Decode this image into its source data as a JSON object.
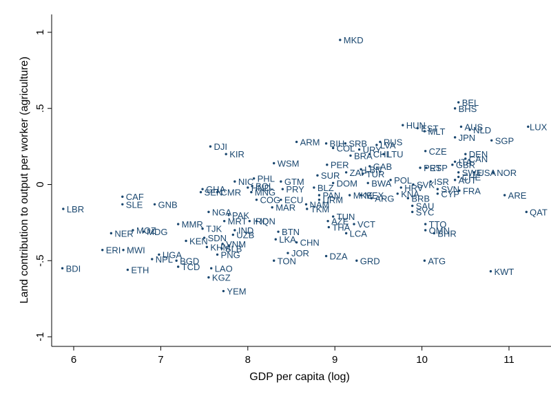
{
  "chart_data": {
    "type": "scatter",
    "xlabel": "GDP per capita (log)",
    "ylabel": "Land contribution to output per worker (agriculture)",
    "xlim": [
      5.8,
      11.4
    ],
    "ylim": [
      -1.1,
      1.1
    ],
    "x_ticks": [
      6,
      7,
      8,
      9,
      10,
      11
    ],
    "y_ticks": [
      1,
      0.5,
      0,
      -0.5,
      -1
    ],
    "y_tick_labels": [
      "1",
      ".5",
      "0",
      "-.5",
      "-1"
    ],
    "grid": false,
    "marker_color": "#1a476f",
    "points": [
      {
        "label": "MKD",
        "x": 9.06,
        "y": 0.95
      },
      {
        "label": "BEL",
        "x": 10.42,
        "y": 0.54
      },
      {
        "label": "BHS",
        "x": 10.38,
        "y": 0.5
      },
      {
        "label": "LUX",
        "x": 11.22,
        "y": 0.38
      },
      {
        "label": "HUN",
        "x": 9.78,
        "y": 0.39
      },
      {
        "label": "EST",
        "x": 9.95,
        "y": 0.37
      },
      {
        "label": "MLT",
        "x": 10.03,
        "y": 0.35
      },
      {
        "label": "AUS",
        "x": 10.45,
        "y": 0.38
      },
      {
        "label": "NLD",
        "x": 10.55,
        "y": 0.36
      },
      {
        "label": "JPN",
        "x": 10.38,
        "y": 0.31
      },
      {
        "label": "SGP",
        "x": 10.8,
        "y": 0.29
      },
      {
        "label": "ARM",
        "x": 8.56,
        "y": 0.28
      },
      {
        "label": "BIH",
        "x": 8.9,
        "y": 0.27
      },
      {
        "label": "SRB",
        "x": 9.12,
        "y": 0.27
      },
      {
        "label": "RUS",
        "x": 9.52,
        "y": 0.28
      },
      {
        "label": "LVA",
        "x": 9.48,
        "y": 0.26
      },
      {
        "label": "COL",
        "x": 8.98,
        "y": 0.24
      },
      {
        "label": "URY",
        "x": 9.28,
        "y": 0.23
      },
      {
        "label": "DJI",
        "x": 7.57,
        "y": 0.25
      },
      {
        "label": "KIR",
        "x": 7.75,
        "y": 0.2
      },
      {
        "label": "CZE",
        "x": 10.04,
        "y": 0.22
      },
      {
        "label": "DEN",
        "x": 10.5,
        "y": 0.2
      },
      {
        "label": "WSM",
        "x": 8.3,
        "y": 0.14
      },
      {
        "label": "PER",
        "x": 8.91,
        "y": 0.13
      },
      {
        "label": "ITA",
        "x": 10.38,
        "y": 0.15
      },
      {
        "label": "NOR",
        "x": 10.82,
        "y": 0.08
      },
      {
        "label": "PRT",
        "x": 9.98,
        "y": 0.11
      },
      {
        "label": "ISR",
        "x": 10.1,
        "y": 0.02
      },
      {
        "label": "GTM",
        "x": 8.38,
        "y": 0.02
      },
      {
        "label": "NIC",
        "x": 7.85,
        "y": 0.02
      },
      {
        "label": "PHL",
        "x": 8.07,
        "y": 0.04
      },
      {
        "label": "SUR",
        "x": 8.8,
        "y": 0.06
      },
      {
        "label": "ZAF",
        "x": 9.13,
        "y": 0.08
      },
      {
        "label": "DOM",
        "x": 8.98,
        "y": 0.01
      },
      {
        "label": "POL",
        "x": 9.64,
        "y": 0.03
      },
      {
        "label": "SVK",
        "x": 9.9,
        "y": 0
      },
      {
        "label": "SVN",
        "x": 10.18,
        "y": -0.03
      },
      {
        "label": "CYP",
        "x": 10.18,
        "y": -0.06
      },
      {
        "label": "FRA",
        "x": 10.43,
        "y": -0.04
      },
      {
        "label": "ARE",
        "x": 10.95,
        "y": -0.07
      },
      {
        "label": "QAT",
        "x": 11.2,
        "y": -0.18
      },
      {
        "label": "HRV",
        "x": 9.76,
        "y": -0.02
      },
      {
        "label": "KNA",
        "x": 9.72,
        "y": -0.06
      },
      {
        "label": "BRB",
        "x": 9.84,
        "y": -0.09
      },
      {
        "label": "ARG",
        "x": 9.42,
        "y": -0.09
      },
      {
        "label": "BWA",
        "x": 9.38,
        "y": 0.01
      },
      {
        "label": "SAU",
        "x": 9.89,
        "y": -0.14
      },
      {
        "label": "SYC",
        "x": 9.89,
        "y": -0.18
      },
      {
        "label": "TTO",
        "x": 10.04,
        "y": -0.26
      },
      {
        "label": "OMN",
        "x": 10.04,
        "y": -0.3
      },
      {
        "label": "BHR",
        "x": 10.14,
        "y": -0.32
      },
      {
        "label": "ATG",
        "x": 10.03,
        "y": -0.5
      },
      {
        "label": "KWT",
        "x": 10.79,
        "y": -0.57
      },
      {
        "label": "CAF",
        "x": 6.56,
        "y": -0.08
      },
      {
        "label": "SLE",
        "x": 6.56,
        "y": -0.13
      },
      {
        "label": "LBR",
        "x": 5.88,
        "y": -0.16
      },
      {
        "label": "GNB",
        "x": 6.93,
        "y": -0.13
      },
      {
        "label": "NER",
        "x": 6.43,
        "y": -0.32
      },
      {
        "label": "MOZ",
        "x": 6.68,
        "y": -0.3
      },
      {
        "label": "MDG",
        "x": 6.8,
        "y": -0.31
      },
      {
        "label": "ERI",
        "x": 6.33,
        "y": -0.43
      },
      {
        "label": "MWI",
        "x": 6.57,
        "y": -0.43
      },
      {
        "label": "BDI",
        "x": 5.87,
        "y": -0.55
      },
      {
        "label": "ETH",
        "x": 6.62,
        "y": -0.56
      },
      {
        "label": "NPL",
        "x": 6.9,
        "y": -0.49
      },
      {
        "label": "UGA",
        "x": 6.98,
        "y": -0.46
      },
      {
        "label": "TCD",
        "x": 7.2,
        "y": -0.54
      },
      {
        "label": "BGD",
        "x": 7.18,
        "y": -0.5
      },
      {
        "label": "MMR",
        "x": 7.2,
        "y": -0.26
      },
      {
        "label": "NGA",
        "x": 7.55,
        "y": -0.18
      },
      {
        "label": "TJK",
        "x": 7.48,
        "y": -0.29
      },
      {
        "label": "MRT",
        "x": 7.73,
        "y": -0.24
      },
      {
        "label": "PAK",
        "x": 7.78,
        "y": -0.2
      },
      {
        "label": "SDN",
        "x": 7.5,
        "y": -0.35
      },
      {
        "label": "KEN",
        "x": 7.29,
        "y": -0.37
      },
      {
        "label": "KHM",
        "x": 7.53,
        "y": -0.41
      },
      {
        "label": "VNM",
        "x": 7.71,
        "y": -0.39
      },
      {
        "label": "SLB",
        "x": 7.7,
        "y": -0.42
      },
      {
        "label": "PNG",
        "x": 7.65,
        "y": -0.46
      },
      {
        "label": "LAO",
        "x": 7.58,
        "y": -0.55
      },
      {
        "label": "KGZ",
        "x": 7.55,
        "y": -0.61
      },
      {
        "label": "YEM",
        "x": 7.72,
        "y": -0.7
      },
      {
        "label": "UZB",
        "x": 7.83,
        "y": -0.33
      },
      {
        "label": "IND",
        "x": 7.85,
        "y": -0.3
      },
      {
        "label": "IRQ",
        "x": 8.02,
        "y": -0.24
      },
      {
        "label": "IDN",
        "x": 8.1,
        "y": -0.24
      },
      {
        "label": "LKA",
        "x": 8.32,
        "y": -0.36
      },
      {
        "label": "BTN",
        "x": 8.35,
        "y": -0.31
      },
      {
        "label": "CHN",
        "x": 8.56,
        "y": -0.38
      },
      {
        "label": "TON",
        "x": 8.3,
        "y": -0.5
      },
      {
        "label": "JOR",
        "x": 8.46,
        "y": -0.45
      },
      {
        "label": "DZA",
        "x": 8.9,
        "y": -0.47
      },
      {
        "label": "GRD",
        "x": 9.25,
        "y": -0.5
      },
      {
        "label": "TUN",
        "x": 8.98,
        "y": -0.21
      },
      {
        "label": "AZE",
        "x": 8.92,
        "y": -0.24
      },
      {
        "label": "THA",
        "x": 8.93,
        "y": -0.28
      },
      {
        "label": "VCT",
        "x": 9.22,
        "y": -0.26
      },
      {
        "label": "LCA",
        "x": 9.13,
        "y": -0.32
      },
      {
        "label": "COG",
        "x": 8.1,
        "y": -0.1
      },
      {
        "label": "ECU",
        "x": 8.38,
        "y": -0.1
      },
      {
        "label": "MAR",
        "x": 8.28,
        "y": -0.15
      },
      {
        "label": "NAM",
        "x": 8.67,
        "y": -0.13
      },
      {
        "label": "TKM",
        "x": 8.68,
        "y": -0.16
      },
      {
        "label": "PRY",
        "x": 8.4,
        "y": -0.03
      },
      {
        "label": "MNG",
        "x": 8.04,
        "y": -0.05
      },
      {
        "label": "GHA",
        "x": 7.48,
        "y": -0.03
      },
      {
        "label": "SEN",
        "x": 7.46,
        "y": -0.05
      },
      {
        "label": "CMR",
        "x": 7.65,
        "y": -0.05
      },
      {
        "label": "HND",
        "x": 8.0,
        "y": -0.02
      },
      {
        "label": "BOL",
        "x": 8.05,
        "y": -0.01
      },
      {
        "label": "BLZ",
        "x": 8.76,
        "y": -0.02
      },
      {
        "label": "PAN",
        "x": 8.82,
        "y": -0.07
      },
      {
        "label": "URM",
        "x": 8.82,
        "y": -0.1
      },
      {
        "label": "MKE",
        "x": 9.17,
        "y": -0.07
      },
      {
        "label": "MEX",
        "x": 9.3,
        "y": -0.07
      },
      {
        "label": "TUR",
        "x": 9.32,
        "y": 0.07
      },
      {
        "label": "LBN",
        "x": 9.3,
        "y": 0.1
      },
      {
        "label": "GAB",
        "x": 9.4,
        "y": 0.12
      },
      {
        "label": "BRA",
        "x": 9.18,
        "y": 0.19
      },
      {
        "label": "CHL",
        "x": 9.4,
        "y": 0.2
      },
      {
        "label": "LTU",
        "x": 9.56,
        "y": 0.2
      },
      {
        "label": "GBR",
        "x": 10.35,
        "y": 0.13
      },
      {
        "label": "CHE",
        "x": 10.42,
        "y": 0.05
      },
      {
        "label": "AUT",
        "x": 10.38,
        "y": 0.03
      },
      {
        "label": "USA",
        "x": 10.6,
        "y": 0.08
      },
      {
        "label": "SWE",
        "x": 10.42,
        "y": 0.08
      },
      {
        "label": "CAN",
        "x": 10.5,
        "y": 0.17
      },
      {
        "label": "ESP",
        "x": 10.05,
        "y": 0.11
      }
    ]
  }
}
